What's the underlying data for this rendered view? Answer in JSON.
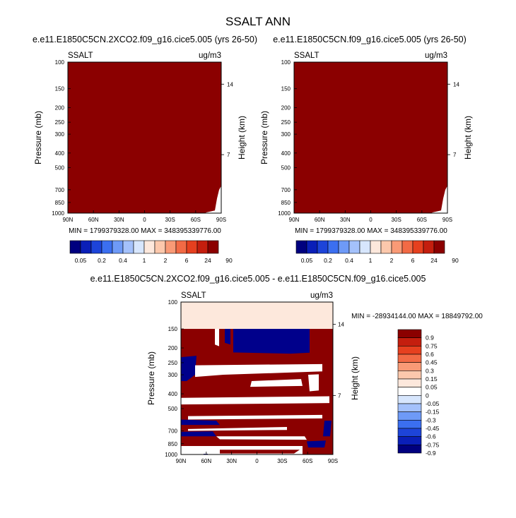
{
  "title": "SSALT ANN",
  "colors": {
    "dark_red": "#8b0000",
    "dark_blue": "#00008b",
    "white": "#ffffff",
    "cream": "#fde8dc"
  },
  "chart_data": [
    {
      "type": "heatmap",
      "title": "e.e11.E1850C5CN.2XCO2.f09_g16.cice5.005 (yrs 26-50)",
      "variable": "SSALT",
      "units": "ug/m3",
      "ylabel": "Pressure (mb)",
      "ylabel_right": "Height (km)",
      "x_ticks": [
        "90N",
        "60N",
        "30N",
        "0",
        "30S",
        "60S",
        "90S"
      ],
      "y_ticks": [
        "100",
        "150",
        "200",
        "250",
        "300",
        "400",
        "500",
        "700",
        "850",
        "1000"
      ],
      "y_ticks_right": [
        "14",
        "7"
      ],
      "stats": "MIN = 1799379328.00  MAX = 348395339776.00",
      "fill": "saturated above max contour level (90)",
      "colorbar": {
        "levels": [
          "0.05",
          "0.2",
          "0.4",
          "1",
          "2",
          "6",
          "24",
          "90"
        ],
        "colors": [
          "#00007f",
          "#0a1fb8",
          "#1d44d9",
          "#3b6ff0",
          "#6e9af7",
          "#a4c1fb",
          "#d7e6fd",
          "#fde8dc",
          "#fcc8ac",
          "#f99a76",
          "#f26a45",
          "#e6401f",
          "#c41e0e",
          "#8b0000"
        ]
      }
    },
    {
      "type": "heatmap",
      "title": "e.e11.E1850C5CN.f09_g16.cice5.005 (yrs 26-50)",
      "variable": "SSALT",
      "units": "ug/m3",
      "ylabel": "Pressure (mb)",
      "ylabel_right": "Height (km)",
      "x_ticks": [
        "90N",
        "60N",
        "30N",
        "0",
        "30S",
        "60S",
        "90S"
      ],
      "y_ticks": [
        "100",
        "150",
        "200",
        "250",
        "300",
        "400",
        "500",
        "700",
        "850",
        "1000"
      ],
      "y_ticks_right": [
        "14",
        "7"
      ],
      "stats": "MIN = 1799379328.00  MAX = 348395339776.00",
      "fill": "saturated above max contour level (90)",
      "colorbar": {
        "levels": [
          "0.05",
          "0.2",
          "0.4",
          "1",
          "2",
          "6",
          "24",
          "90"
        ],
        "colors": [
          "#00007f",
          "#0a1fb8",
          "#1d44d9",
          "#3b6ff0",
          "#6e9af7",
          "#a4c1fb",
          "#d7e6fd",
          "#fde8dc",
          "#fcc8ac",
          "#f99a76",
          "#f26a45",
          "#e6401f",
          "#c41e0e",
          "#8b0000"
        ]
      }
    },
    {
      "type": "heatmap",
      "title": "e.e11.E1850C5CN.2XCO2.f09_g16.cice5.005 - e.e11.E1850C5CN.f09_g16.cice5.005",
      "variable": "SSALT",
      "units": "ug/m3",
      "ylabel": "Pressure (mb)",
      "ylabel_right": "Height (km)",
      "x_ticks": [
        "90N",
        "60N",
        "30N",
        "0",
        "30S",
        "60S",
        "90S"
      ],
      "y_ticks": [
        "100",
        "150",
        "200",
        "250",
        "300",
        "400",
        "500",
        "700",
        "850",
        "1000"
      ],
      "y_ticks_right": [
        "14",
        "7"
      ],
      "stats": "MIN = -28934144.00  MAX = 18849792.00",
      "colorbar": {
        "levels": [
          "0.9",
          "0.75",
          "0.6",
          "0.45",
          "0.3",
          "0.15",
          "0.05",
          "0",
          "-0.05",
          "-0.15",
          "-0.3",
          "-0.45",
          "-0.6",
          "-0.75",
          "-0.9"
        ],
        "colors": [
          "#8b0000",
          "#c41e0e",
          "#e6401f",
          "#f26a45",
          "#f99a76",
          "#fcc8ac",
          "#fde8dc",
          "#ffffff",
          "#d7e6fd",
          "#a4c1fb",
          "#6e9af7",
          "#3b6ff0",
          "#1d44d9",
          "#0a1fb8",
          "#00007f"
        ]
      }
    }
  ]
}
